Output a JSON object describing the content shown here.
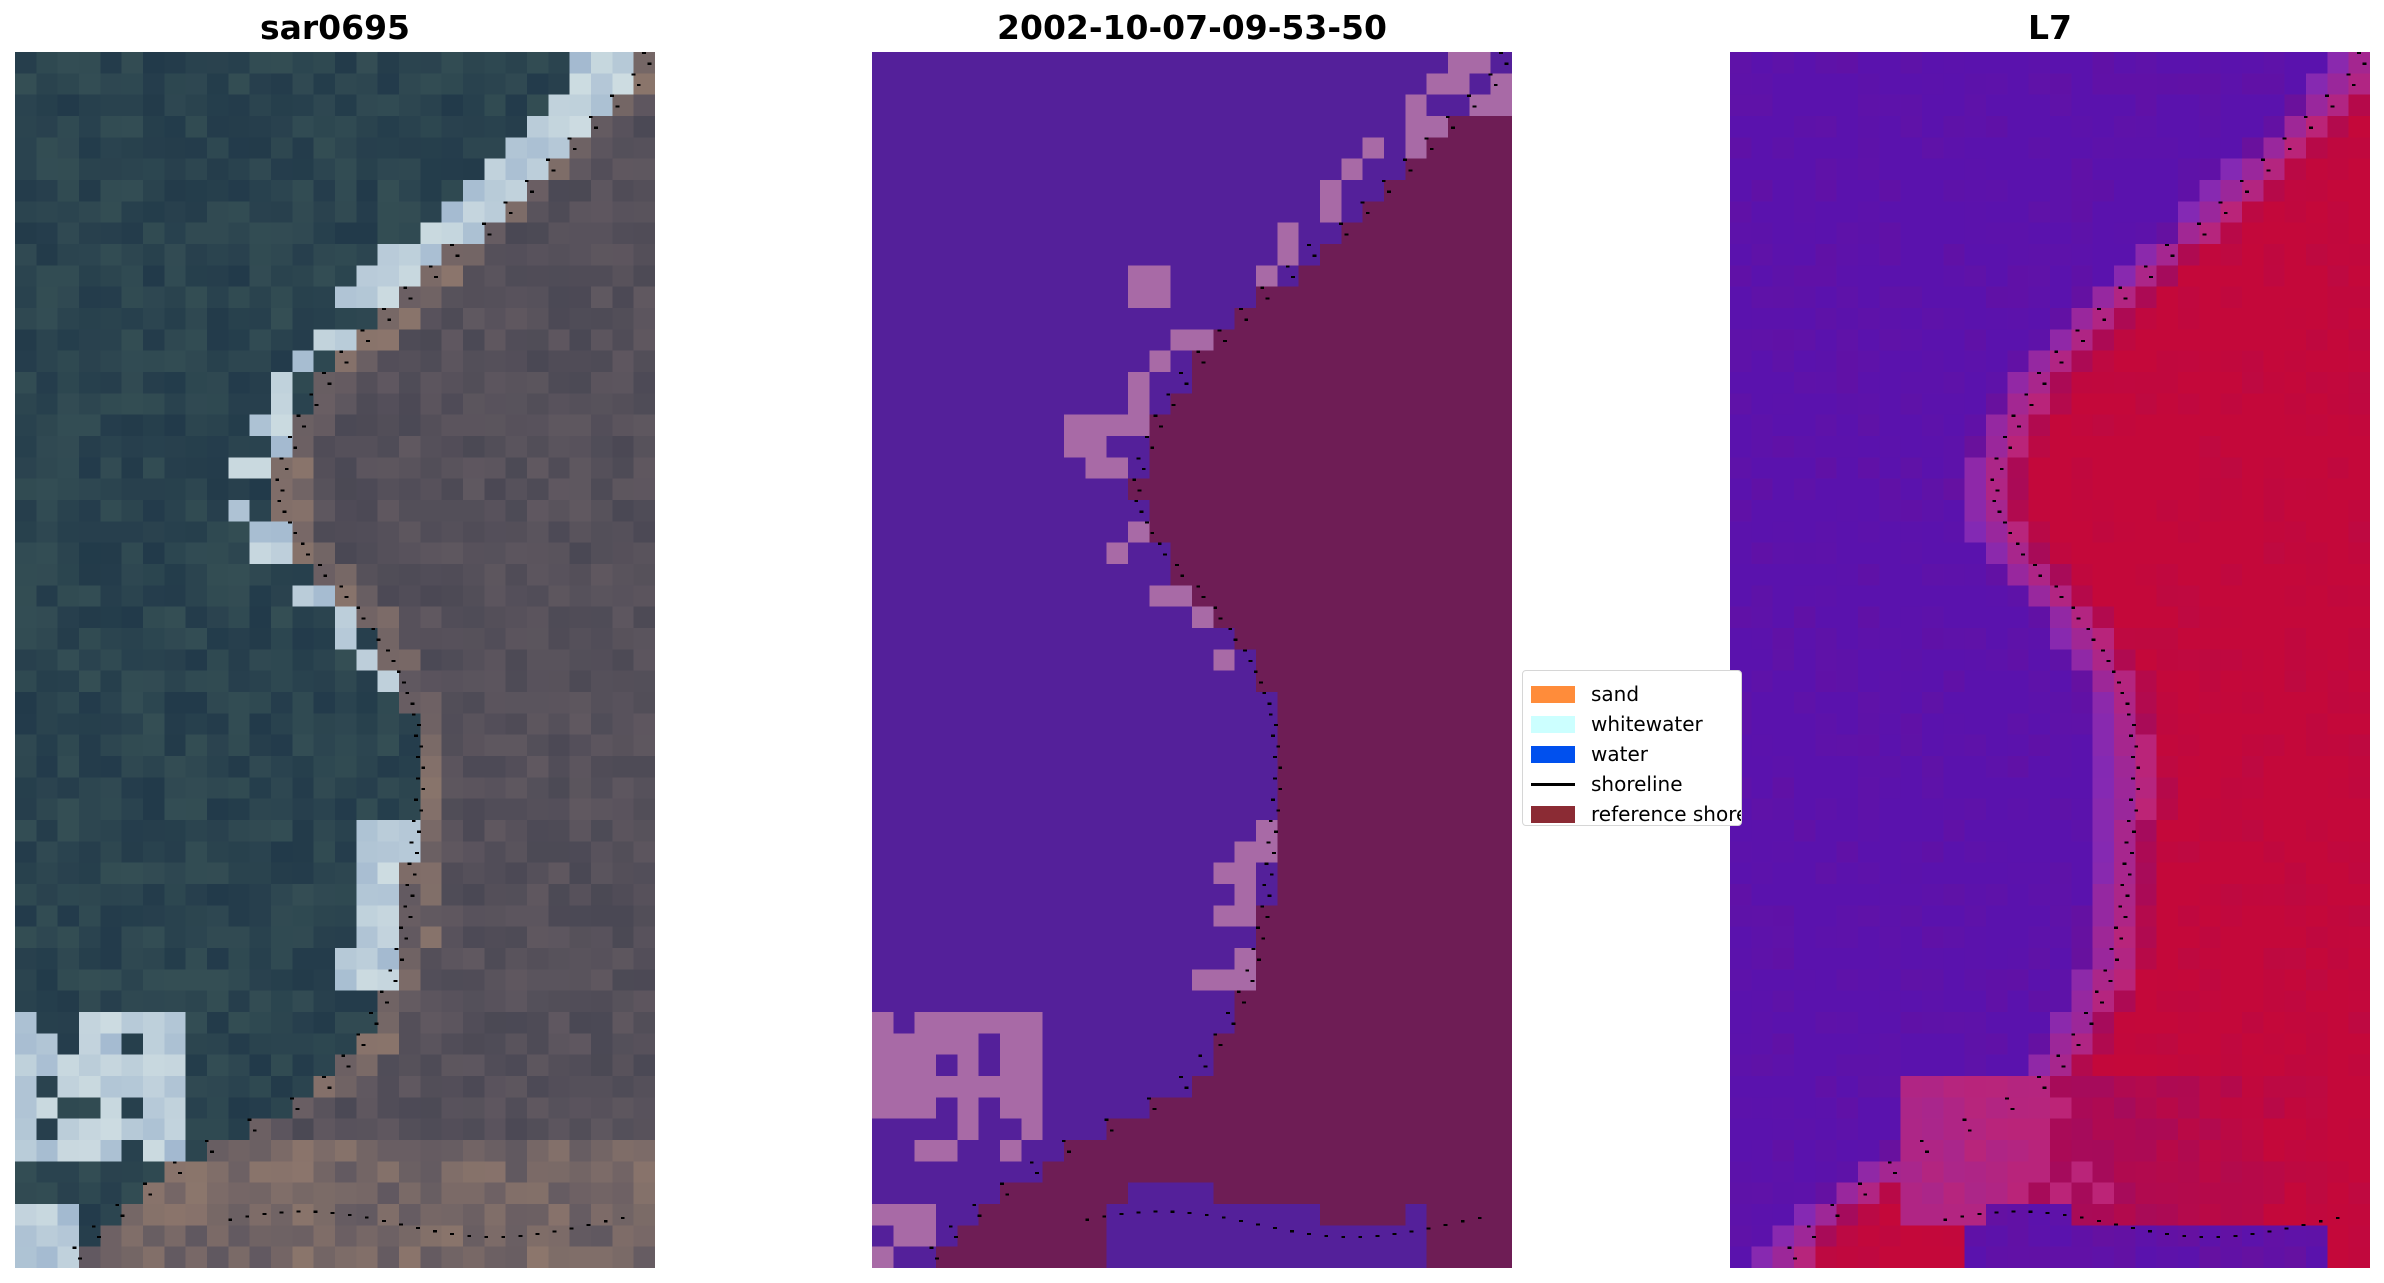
{
  "titles": {
    "rgb": "sar0695",
    "classification": "2002-10-07-09-53-50",
    "mndwi": "L7"
  },
  "legend": [
    {
      "label": "sand",
      "color": "#ff8c3a",
      "kind": "patch"
    },
    {
      "label": "whitewater",
      "color": "#ccffff",
      "kind": "patch"
    },
    {
      "label": "water",
      "color": "#0050ee",
      "kind": "patch"
    },
    {
      "label": "shoreline",
      "color": "#000000",
      "kind": "line"
    },
    {
      "label": "reference shoreline",
      "color": "#8b2b34",
      "kind": "patch"
    }
  ],
  "colors": {
    "class_water": "#54209a",
    "class_land": "#6e1d55",
    "class_whitewater": "#a86aa6",
    "mndwi_low": "#5a12ad",
    "mndwi_high": "#c4083a"
  }
}
